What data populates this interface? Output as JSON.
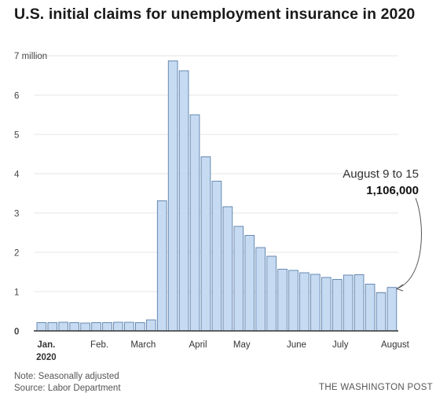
{
  "title": "U.S. initial claims for unemployment insurance in 2020",
  "notes": {
    "note": "Note: Seasonally adjusted",
    "source": "Source: Labor Department",
    "credit": "THE WASHINGTON POST"
  },
  "callout": {
    "label": "August 9 to 15",
    "value": "1,106,000"
  },
  "colors": {
    "bar_fill": "#c6dbf2",
    "bar_stroke": "#5a7faa",
    "grid": "#e4e4e4",
    "axis": "#333333"
  },
  "chart_data": {
    "type": "bar",
    "title": "U.S. initial claims for unemployment insurance in 2020",
    "ylim": [
      0,
      7
    ],
    "yticks": [
      {
        "value": 0,
        "label": "0"
      },
      {
        "value": 1,
        "label": "1"
      },
      {
        "value": 2,
        "label": "2"
      },
      {
        "value": 3,
        "label": "3"
      },
      {
        "value": 4,
        "label": "4"
      },
      {
        "value": 5,
        "label": "5"
      },
      {
        "value": 6,
        "label": "6"
      },
      {
        "value": 7,
        "label": "7 million"
      }
    ],
    "xticks": [
      {
        "index": 0,
        "label": "Jan.",
        "sublabel": "2020",
        "bold": true
      },
      {
        "index": 5,
        "label": "Feb."
      },
      {
        "index": 9,
        "label": "March"
      },
      {
        "index": 14,
        "label": "April"
      },
      {
        "index": 18,
        "label": "May"
      },
      {
        "index": 23,
        "label": "June"
      },
      {
        "index": 27,
        "label": "July"
      },
      {
        "index": 32,
        "label": "August"
      }
    ],
    "grid": true,
    "values": [
      0.21,
      0.21,
      0.22,
      0.21,
      0.2,
      0.21,
      0.21,
      0.22,
      0.22,
      0.21,
      0.28,
      3.31,
      6.87,
      6.62,
      5.5,
      4.43,
      3.81,
      3.16,
      2.66,
      2.43,
      2.12,
      1.9,
      1.57,
      1.54,
      1.48,
      1.44,
      1.36,
      1.31,
      1.42,
      1.43,
      1.19,
      0.97,
      1.106
    ],
    "highlight": {
      "index": 32,
      "label": "August 9 to 15",
      "value_label": "1,106,000"
    }
  }
}
